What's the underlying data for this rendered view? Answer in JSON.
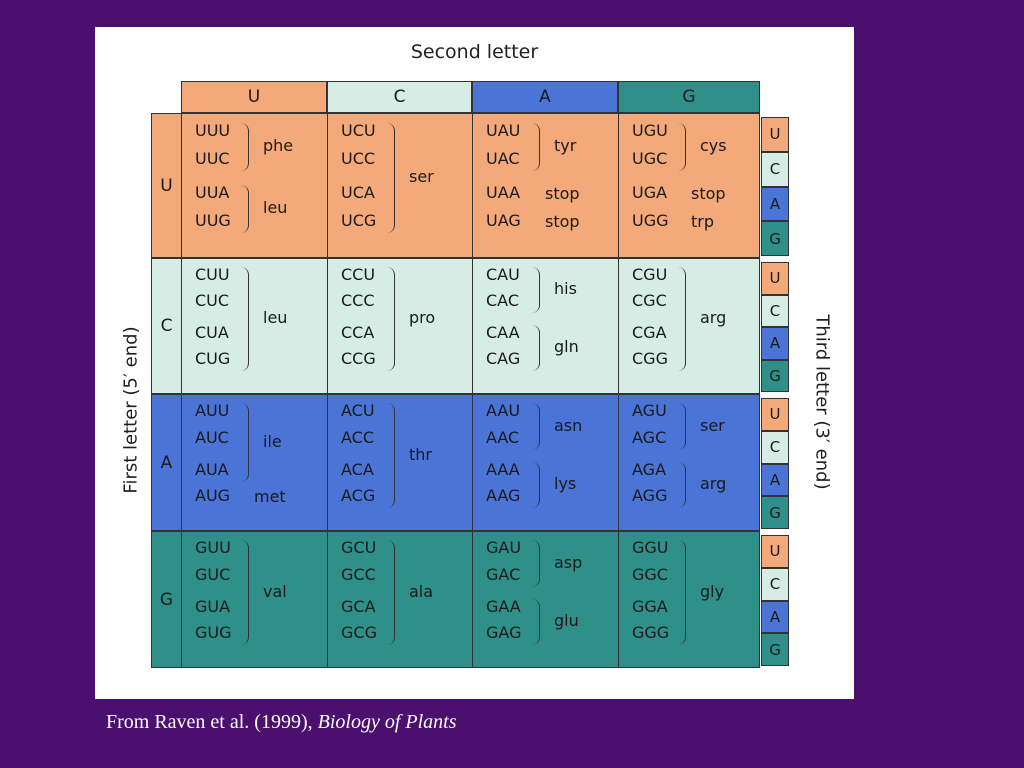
{
  "figure": {
    "title": "Second letter",
    "first_letter_label": "First letter (5′ end)",
    "third_letter_label": "Third letter (3′ end)",
    "bases": [
      "U",
      "C",
      "A",
      "G"
    ],
    "colors": {
      "U": "#f3a97a",
      "C": "#d6ede6",
      "A": "#4a74d6",
      "G": "#2e9088"
    },
    "rows": [
      {
        "first": "U",
        "cells": [
          {
            "codons": [
              "UUU",
              "UUC",
              "UUA",
              "UUG"
            ],
            "groups": [
              {
                "aa": "phe",
                "from": 0,
                "to": 1
              },
              {
                "aa": "leu",
                "from": 2,
                "to": 3
              }
            ]
          },
          {
            "codons": [
              "UCU",
              "UCC",
              "UCA",
              "UCG"
            ],
            "groups": [
              {
                "aa": "ser",
                "from": 0,
                "to": 3
              }
            ]
          },
          {
            "codons": [
              "UAU",
              "UAC",
              "UAA",
              "UAG"
            ],
            "groups": [
              {
                "aa": "tyr",
                "from": 0,
                "to": 1
              },
              {
                "aa": "stop",
                "from": 2,
                "to": 2
              },
              {
                "aa": "stop",
                "from": 3,
                "to": 3
              }
            ]
          },
          {
            "codons": [
              "UGU",
              "UGC",
              "UGA",
              "UGG"
            ],
            "groups": [
              {
                "aa": "cys",
                "from": 0,
                "to": 1
              },
              {
                "aa": "stop",
                "from": 2,
                "to": 2
              },
              {
                "aa": "trp",
                "from": 3,
                "to": 3
              }
            ]
          }
        ]
      },
      {
        "first": "C",
        "cells": [
          {
            "codons": [
              "CUU",
              "CUC",
              "CUA",
              "CUG"
            ],
            "groups": [
              {
                "aa": "leu",
                "from": 0,
                "to": 3
              }
            ]
          },
          {
            "codons": [
              "CCU",
              "CCC",
              "CCA",
              "CCG"
            ],
            "groups": [
              {
                "aa": "pro",
                "from": 0,
                "to": 3
              }
            ]
          },
          {
            "codons": [
              "CAU",
              "CAC",
              "CAA",
              "CAG"
            ],
            "groups": [
              {
                "aa": "his",
                "from": 0,
                "to": 1
              },
              {
                "aa": "gln",
                "from": 2,
                "to": 3
              }
            ]
          },
          {
            "codons": [
              "CGU",
              "CGC",
              "CGA",
              "CGG"
            ],
            "groups": [
              {
                "aa": "arg",
                "from": 0,
                "to": 3
              }
            ]
          }
        ]
      },
      {
        "first": "A",
        "cells": [
          {
            "codons": [
              "AUU",
              "AUC",
              "AUA",
              "AUG"
            ],
            "groups": [
              {
                "aa": "ile",
                "from": 0,
                "to": 2
              },
              {
                "aa": "met",
                "from": 3,
                "to": 3
              }
            ]
          },
          {
            "codons": [
              "ACU",
              "ACC",
              "ACA",
              "ACG"
            ],
            "groups": [
              {
                "aa": "thr",
                "from": 0,
                "to": 3
              }
            ]
          },
          {
            "codons": [
              "AAU",
              "AAC",
              "AAA",
              "AAG"
            ],
            "groups": [
              {
                "aa": "asn",
                "from": 0,
                "to": 1
              },
              {
                "aa": "lys",
                "from": 2,
                "to": 3
              }
            ]
          },
          {
            "codons": [
              "AGU",
              "AGC",
              "AGA",
              "AGG"
            ],
            "groups": [
              {
                "aa": "ser",
                "from": 0,
                "to": 1
              },
              {
                "aa": "arg",
                "from": 2,
                "to": 3
              }
            ]
          }
        ]
      },
      {
        "first": "G",
        "cells": [
          {
            "codons": [
              "GUU",
              "GUC",
              "GUA",
              "GUG"
            ],
            "groups": [
              {
                "aa": "val",
                "from": 0,
                "to": 3
              }
            ]
          },
          {
            "codons": [
              "GCU",
              "GCC",
              "GCA",
              "GCG"
            ],
            "groups": [
              {
                "aa": "ala",
                "from": 0,
                "to": 3
              }
            ]
          },
          {
            "codons": [
              "GAU",
              "GAC",
              "GAA",
              "GAG"
            ],
            "groups": [
              {
                "aa": "asp",
                "from": 0,
                "to": 1
              },
              {
                "aa": "glu",
                "from": 2,
                "to": 3
              }
            ]
          },
          {
            "codons": [
              "GGU",
              "GGC",
              "GGA",
              "GGG"
            ],
            "groups": [
              {
                "aa": "gly",
                "from": 0,
                "to": 3
              }
            ]
          }
        ]
      }
    ]
  },
  "caption": {
    "prefix": "From Raven et al. (1999), ",
    "title": "Biology of  Plants"
  }
}
